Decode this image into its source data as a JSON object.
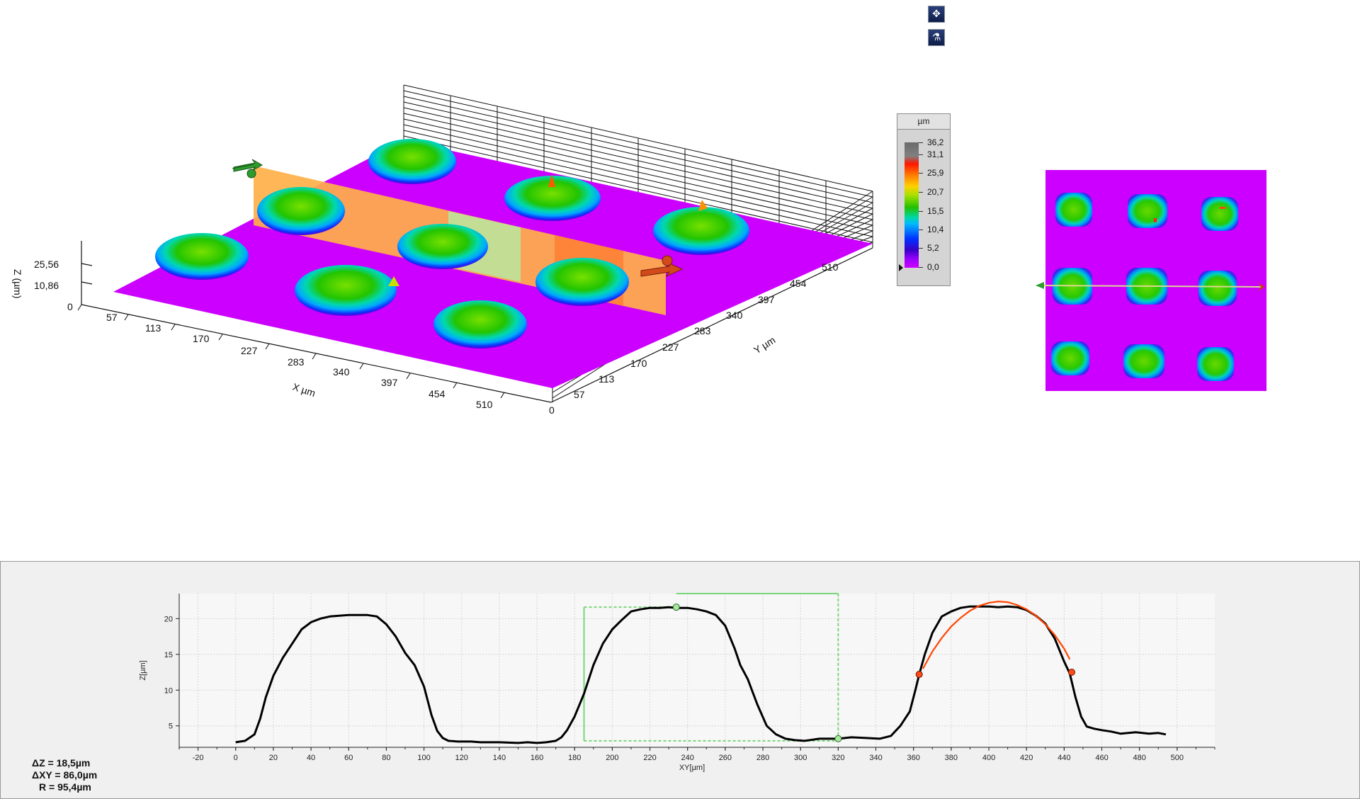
{
  "view3d": {
    "z_axis_label": "Z (µm)",
    "z_ticks": [
      "25,56",
      "10,86"
    ],
    "x_axis_label": "X µm",
    "y_axis_label": "Y µm",
    "x_ticks": [
      "0",
      "57",
      "113",
      "170",
      "227",
      "283",
      "340",
      "397",
      "454",
      "510"
    ],
    "y_ticks": [
      "0",
      "57",
      "113",
      "170",
      "227",
      "283",
      "340",
      "397",
      "454",
      "510"
    ]
  },
  "toolbar": {
    "buttons": [
      {
        "name": "crosshair-icon",
        "glyph": "✥"
      },
      {
        "name": "profile-tool-icon",
        "glyph": "⚗"
      }
    ]
  },
  "legend": {
    "unit": "µm",
    "labels": [
      "36,2",
      "31,1",
      "25,9",
      "20,7",
      "15,5",
      "10,4",
      "5,2",
      "0,0"
    ]
  },
  "colors": {
    "surface": "#cc00ff",
    "profile_plane": "#ffb048",
    "marker_green": "#2e9b2e",
    "marker_red": "#d24a1a",
    "profile_line": "#000000",
    "fit_arc": "#ff4500",
    "selection": "#7ad67a"
  },
  "measurements": {
    "dz": "ΔZ = 18,5µm",
    "dxy": "ΔXY = 86,0µm",
    "r": "R = 95,4µm"
  },
  "chart_data": {
    "type": "line",
    "xlabel": "XY[µm]",
    "ylabel": "Z[µm]",
    "xlim": [
      -30,
      520
    ],
    "ylim": [
      2,
      23.5
    ],
    "xticks": [
      -20,
      0,
      20,
      40,
      60,
      80,
      100,
      120,
      140,
      160,
      180,
      200,
      220,
      240,
      260,
      280,
      300,
      320,
      340,
      360,
      380,
      400,
      420,
      440,
      460,
      480,
      500
    ],
    "yticks": [
      5,
      10,
      15,
      20
    ],
    "grid": true,
    "series": [
      {
        "x": [
          0,
          5,
          10,
          13,
          16,
          20,
          25,
          30,
          35,
          40,
          45,
          50,
          55,
          60,
          65,
          70,
          75,
          80,
          85,
          90,
          95,
          100,
          104,
          107,
          110,
          113,
          118,
          125,
          130,
          140,
          150,
          155,
          160,
          165,
          170,
          173,
          176,
          180,
          185,
          190,
          195,
          200,
          205,
          210,
          215,
          220,
          225,
          230,
          235,
          240,
          245,
          250,
          255,
          260,
          265,
          268,
          272,
          277,
          282,
          287,
          292,
          297,
          302,
          310,
          320,
          327,
          335,
          342,
          348,
          353,
          358,
          361,
          363,
          366,
          370,
          375,
          380,
          385,
          390,
          395,
          400,
          405,
          410,
          415,
          420,
          425,
          430,
          435,
          440,
          443,
          446,
          449,
          452,
          456,
          460,
          465,
          470,
          478,
          485,
          490,
          494
        ],
        "y": [
          2.7,
          2.9,
          3.8,
          6.0,
          9.0,
          12.0,
          14.5,
          16.5,
          18.5,
          19.5,
          20.0,
          20.3,
          20.4,
          20.5,
          20.5,
          20.5,
          20.3,
          19.2,
          17.5,
          15.2,
          13.5,
          10.5,
          6.5,
          4.3,
          3.3,
          2.9,
          2.8,
          2.8,
          2.7,
          2.7,
          2.6,
          2.7,
          2.6,
          2.7,
          2.9,
          3.4,
          4.4,
          6.3,
          9.5,
          13.5,
          16.5,
          18.5,
          19.8,
          21.0,
          21.3,
          21.5,
          21.5,
          21.6,
          21.5,
          21.5,
          21.3,
          21.0,
          20.5,
          19.0,
          15.8,
          13.5,
          11.5,
          8.0,
          5.0,
          3.8,
          3.2,
          3.0,
          2.9,
          3.2,
          3.2,
          3.4,
          3.3,
          3.2,
          3.6,
          5.0,
          7.0,
          10.0,
          12.2,
          15.0,
          18.0,
          20.3,
          21.0,
          21.5,
          21.7,
          21.7,
          21.7,
          21.6,
          21.7,
          21.6,
          21.2,
          20.4,
          19.3,
          17.2,
          14.0,
          12.3,
          9.0,
          6.3,
          4.9,
          4.6,
          4.4,
          4.2,
          3.9,
          4.1,
          3.9,
          4.0,
          3.8
        ]
      },
      {
        "type": "arc",
        "x": [
          365,
          370,
          375,
          380,
          385,
          390,
          395,
          400,
          405,
          410,
          415,
          420,
          425,
          430,
          435,
          440,
          443
        ],
        "y": [
          13.0,
          15.4,
          17.3,
          18.9,
          20.1,
          21.1,
          21.8,
          22.2,
          22.4,
          22.3,
          21.9,
          21.3,
          20.4,
          19.2,
          17.7,
          15.8,
          14.3
        ]
      }
    ],
    "markers": [
      {
        "x": 234,
        "y": 21.6
      },
      {
        "x": 320,
        "y": 3.2
      },
      {
        "x": 363,
        "y": 12.2
      },
      {
        "x": 444,
        "y": 12.5
      }
    ]
  }
}
